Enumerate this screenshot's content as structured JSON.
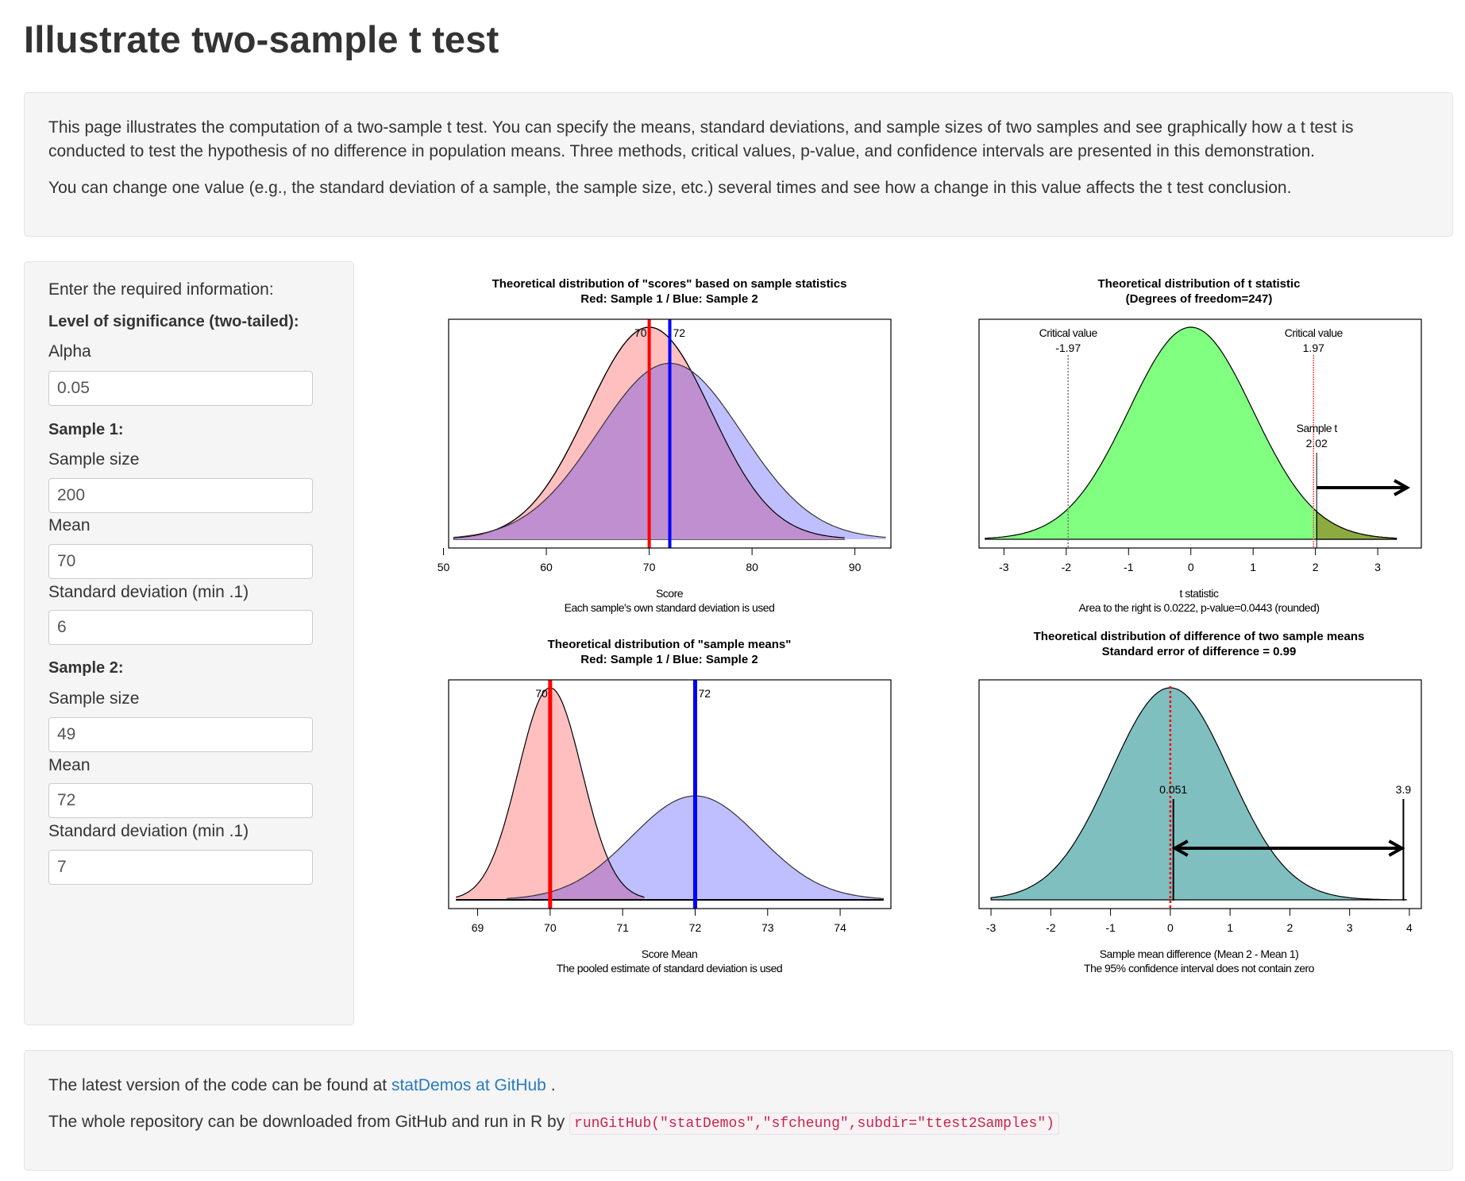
{
  "page": {
    "title": "Illustrate two-sample t test"
  },
  "intro": {
    "paragraph1": "This page illustrates the computation of a two-sample t test. You can specify the means, standard deviations, and sample sizes of two samples and see graphically how a t test is conducted to test the hypothesis of no difference in population means. Three methods, critical values, p-value, and confidence intervals are presented in this demonstration.",
    "paragraph2": "You can change one value (e.g., the standard deviation of a sample, the sample size, etc.) several times and see how a change in this value affects the t test conclusion."
  },
  "sidebar": {
    "heading": "Enter the required information:",
    "significance_heading": "Level of significance (two-tailed):",
    "alpha_label": "Alpha",
    "alpha_value": "0.05",
    "sample1_heading": "Sample 1:",
    "sample1_size_label": "Sample size",
    "sample1_size_value": "200",
    "sample1_mean_label": "Mean",
    "sample1_mean_value": "70",
    "sample1_sd_label": "Standard deviation (min .1)",
    "sample1_sd_value": "6",
    "sample2_heading": "Sample 2:",
    "sample2_size_label": "Sample size",
    "sample2_size_value": "49",
    "sample2_mean_label": "Mean",
    "sample2_mean_value": "72",
    "sample2_sd_label": "Standard deviation (min .1)",
    "sample2_sd_value": "7"
  },
  "footer": {
    "line1_prefix": "The latest version of the code can be found at ",
    "line1_link": "statDemos at GitHub",
    "line1_suffix": " .",
    "line2_prefix": "The whole repository can be downloaded from GitHub and run in R by ",
    "line2_code": "runGitHub(\"statDemos\",\"sfcheung\",subdir=\"ttest2Samples\")"
  },
  "colors": {
    "sample1_fill": "#ffbfbf",
    "sample2_fill": "#bfbfff",
    "overlap_fill": "#bf8fcf",
    "sample1_line": "#ff0000",
    "sample2_line": "#0000ff",
    "t_fill": "#80ff80",
    "t_tail_fill": "#8caa40",
    "diff_fill": "#80bfbf",
    "link": "#2a7ac0"
  },
  "chart_data": [
    {
      "id": "scores",
      "type": "area",
      "title": "Theoretical distribution of \"scores\" based on sample statistics",
      "subtitle": "Red: Sample 1 / Blue: Sample 2",
      "xlabel": "Score",
      "note": "Each sample's own standard deviation is used",
      "xlim": [
        50.5,
        93.5
      ],
      "xticks": [
        50,
        60,
        70,
        80,
        90
      ],
      "series": [
        {
          "name": "Sample 1",
          "mean": 70,
          "sd": 6,
          "range": [
            51,
            89
          ]
        },
        {
          "name": "Sample 2",
          "mean": 72,
          "sd": 7,
          "range": [
            51,
            93
          ]
        }
      ],
      "mean_labels": [
        "70",
        "72"
      ]
    },
    {
      "id": "t",
      "type": "area",
      "title": "Theoretical distribution of t statistic",
      "subtitle": "(Degrees of freedom=247)",
      "xlabel": "t statistic",
      "note": "Area to the right is 0.0222, p-value=0.0443 (rounded)",
      "xlim": [
        -3.4,
        3.7
      ],
      "xticks": [
        -3,
        -2,
        -1,
        0,
        1,
        2,
        3
      ],
      "df": 247,
      "critical_values": [
        -1.97,
        1.97
      ],
      "critical_label": "Critical value",
      "critical_low_text": "-1.97",
      "critical_high_text": "1.97",
      "sample_t": 2.02,
      "sample_t_label": "Sample t",
      "sample_t_text": "2.02"
    },
    {
      "id": "means",
      "type": "area",
      "title": "Theoretical distribution of \"sample means\"",
      "subtitle": "Red: Sample 1 / Blue: Sample 2",
      "xlabel": "Score Mean",
      "note": "The pooled estimate of standard deviation is used",
      "xlim": [
        68.6,
        74.7
      ],
      "xticks": [
        69,
        70,
        71,
        72,
        73,
        74
      ],
      "series": [
        {
          "name": "Sample 1",
          "mean": 70,
          "se": 0.44,
          "range": [
            68.7,
            71.3
          ]
        },
        {
          "name": "Sample 2",
          "mean": 72,
          "se": 0.88,
          "range": [
            69.4,
            74.6
          ]
        }
      ],
      "mean_labels": [
        "70",
        "72"
      ]
    },
    {
      "id": "diff",
      "type": "area",
      "title": "Theoretical distribution of difference of two sample means",
      "subtitle": "Standard error of difference = 0.99",
      "xlabel": "Sample mean difference (Mean 2 - Mean 1)",
      "note": "The 95% confidence interval does not contain zero",
      "xlim": [
        -3.2,
        4.2
      ],
      "xticks": [
        -3,
        -2,
        -1,
        0,
        1,
        2,
        3,
        4
      ],
      "se": 0.99,
      "ci": [
        0.051,
        3.9
      ],
      "ci_low_text": "0.051",
      "ci_high_text": "3.9"
    }
  ]
}
